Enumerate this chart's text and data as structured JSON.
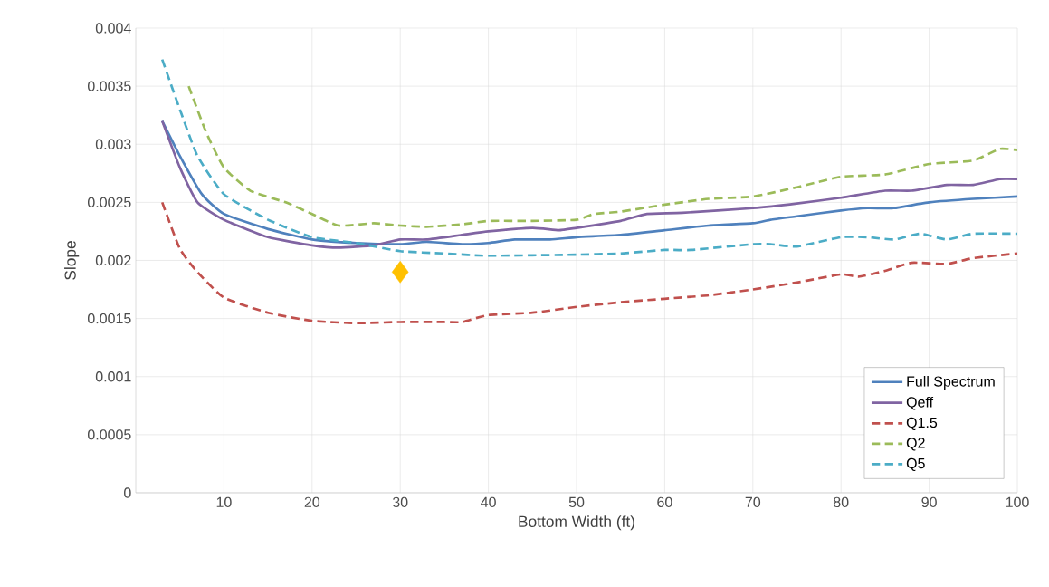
{
  "chart_data": {
    "type": "line",
    "xlabel": "Bottom Width (ft)",
    "ylabel": "Slope",
    "xlim": [
      0,
      100
    ],
    "xticks": [
      10,
      20,
      30,
      40,
      50,
      60,
      70,
      80,
      90,
      100
    ],
    "ylim": [
      0,
      0.004
    ],
    "yticks": [
      0,
      0.0005,
      0.001,
      0.0015,
      0.002,
      0.0025,
      0.003,
      0.0035,
      0.004
    ],
    "grid": true,
    "legend": "bottom right",
    "marker": "none",
    "series": [
      {
        "name": "Full Spectrum",
        "color": "#4f81bd",
        "line_style": "solid",
        "x": [
          3,
          5,
          7.5,
          10,
          15,
          20,
          25,
          30,
          33,
          37,
          40,
          43,
          47,
          50,
          55,
          60,
          65,
          70,
          72,
          75,
          80,
          83,
          86,
          90,
          95,
          100
        ],
        "values": [
          0.0032,
          0.0029,
          0.00257,
          0.0024,
          0.00227,
          0.00218,
          0.00215,
          0.00214,
          0.00216,
          0.00214,
          0.00215,
          0.00218,
          0.00218,
          0.0022,
          0.00222,
          0.00226,
          0.0023,
          0.00232,
          0.00235,
          0.00238,
          0.00243,
          0.00245,
          0.00245,
          0.0025,
          0.00253,
          0.00255
        ]
      },
      {
        "name": "Qeff",
        "color": "#8064a2",
        "line_style": "solid",
        "x": [
          3,
          5,
          7,
          10,
          15,
          20,
          23,
          27,
          30,
          33,
          37,
          40,
          45,
          48,
          50,
          55,
          58,
          62,
          70,
          75,
          80,
          85,
          88,
          92,
          95,
          98,
          100
        ],
        "values": [
          0.0032,
          0.0028,
          0.0025,
          0.00235,
          0.0022,
          0.00213,
          0.00211,
          0.00213,
          0.00218,
          0.00218,
          0.00222,
          0.00225,
          0.00228,
          0.00226,
          0.00228,
          0.00234,
          0.0024,
          0.00241,
          0.00245,
          0.00249,
          0.00254,
          0.0026,
          0.0026,
          0.00265,
          0.00265,
          0.0027,
          0.0027
        ]
      },
      {
        "name": "Q1.5",
        "color": "#c0504d",
        "line_style": "dashed",
        "x": [
          3,
          5,
          7,
          10,
          15,
          20,
          25,
          30,
          35,
          37,
          40,
          45,
          50,
          55,
          60,
          65,
          70,
          75,
          80,
          82,
          85,
          88,
          92,
          95,
          100
        ],
        "values": [
          0.0025,
          0.0021,
          0.0019,
          0.00168,
          0.00155,
          0.00148,
          0.00146,
          0.00147,
          0.00147,
          0.00147,
          0.00153,
          0.00155,
          0.0016,
          0.00164,
          0.00167,
          0.0017,
          0.00175,
          0.00181,
          0.00188,
          0.00186,
          0.00191,
          0.00198,
          0.00197,
          0.00202,
          0.00206
        ]
      },
      {
        "name": "Q2",
        "color": "#9bbb59",
        "line_style": "dashed",
        "x": [
          6,
          8,
          10,
          13,
          17,
          20,
          23,
          27,
          30,
          33,
          37,
          40,
          45,
          50,
          52,
          55,
          60,
          65,
          70,
          75,
          80,
          85,
          90,
          95,
          98,
          100
        ],
        "values": [
          0.0035,
          0.0031,
          0.0028,
          0.0026,
          0.0025,
          0.0024,
          0.0023,
          0.00232,
          0.0023,
          0.00229,
          0.00231,
          0.00234,
          0.00234,
          0.00235,
          0.0024,
          0.00242,
          0.00248,
          0.00253,
          0.00255,
          0.00263,
          0.00272,
          0.00274,
          0.00283,
          0.00286,
          0.00296,
          0.00295
        ]
      },
      {
        "name": "Q5",
        "color": "#4bacc6",
        "line_style": "dashed",
        "x": [
          3,
          5,
          7,
          10,
          15,
          20,
          25,
          30,
          35,
          40,
          50,
          55,
          60,
          63,
          70,
          72,
          75,
          80,
          83,
          86,
          89,
          92,
          95,
          100
        ],
        "values": [
          0.00373,
          0.0033,
          0.0029,
          0.00257,
          0.00235,
          0.0022,
          0.00215,
          0.00208,
          0.00206,
          0.00204,
          0.00205,
          0.00206,
          0.00209,
          0.00209,
          0.00214,
          0.00214,
          0.00212,
          0.0022,
          0.0022,
          0.00218,
          0.00223,
          0.00218,
          0.00223,
          0.00223
        ]
      },
      {
        "type": "scatter",
        "marker": "diamond",
        "color": "#ffc000",
        "x": [
          30
        ],
        "values": [
          0.0019
        ]
      }
    ]
  }
}
